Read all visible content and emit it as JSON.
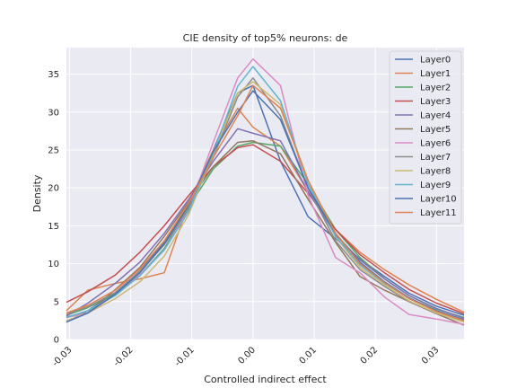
{
  "chart_data": {
    "type": "line",
    "title": "CIE density of top5% neurons: de",
    "xlabel": "Controlled indirect effect",
    "ylabel": "Density",
    "xlim": [
      -0.0305,
      0.0345
    ],
    "ylim": [
      0,
      38.5
    ],
    "xticks": [
      -0.03,
      -0.02,
      -0.01,
      0.0,
      0.01,
      0.02,
      0.03
    ],
    "xtick_labels": [
      "-0.03",
      "-0.02",
      "-0.01",
      "0.00",
      "0.01",
      "0.02",
      "0.03"
    ],
    "yticks": [
      0,
      5,
      10,
      15,
      20,
      25,
      30,
      35
    ],
    "ytick_labels": [
      "0",
      "5",
      "10",
      "15",
      "20",
      "25",
      "30",
      "35"
    ],
    "grid": true,
    "legend_position": "top-right",
    "series": [
      {
        "name": "Layer0",
        "color": "#4c72b0",
        "x": [
          -0.0305,
          -0.027,
          -0.0225,
          -0.0185,
          -0.0145,
          -0.0105,
          -0.0065,
          -0.0025,
          0.0,
          0.0045,
          0.009,
          0.0135,
          0.0175,
          0.0215,
          0.0255,
          0.03,
          0.0345
        ],
        "y": [
          2.3,
          3.8,
          6.2,
          9.0,
          12.8,
          17.5,
          25.0,
          32.5,
          33.5,
          23.5,
          16.2,
          13.3,
          10.6,
          8.3,
          6.1,
          4.4,
          3.2
        ]
      },
      {
        "name": "Layer1",
        "color": "#dd8452",
        "x": [
          -0.0305,
          -0.027,
          -0.0225,
          -0.0185,
          -0.0145,
          -0.0105,
          -0.0065,
          -0.0025,
          0.0,
          0.0045,
          0.009,
          0.0135,
          0.0175,
          0.0215,
          0.0255,
          0.03,
          0.0345
        ],
        "y": [
          3.8,
          6.5,
          7.4,
          8.0,
          8.8,
          18.0,
          25.0,
          30.5,
          28.0,
          25.5,
          19.5,
          14.5,
          11.5,
          9.2,
          7.2,
          5.3,
          3.6
        ]
      },
      {
        "name": "Layer2",
        "color": "#55a868",
        "x": [
          -0.0305,
          -0.027,
          -0.0225,
          -0.0185,
          -0.0145,
          -0.0105,
          -0.0065,
          -0.0025,
          0.0,
          0.0045,
          0.009,
          0.0135,
          0.0175,
          0.0215,
          0.0255,
          0.03,
          0.0345
        ],
        "y": [
          3.2,
          4.2,
          6.0,
          8.5,
          12.0,
          17.5,
          22.5,
          25.5,
          26.0,
          25.5,
          20.5,
          14.5,
          10.8,
          8.0,
          5.8,
          4.0,
          2.9
        ]
      },
      {
        "name": "Layer3",
        "color": "#c44e52",
        "x": [
          -0.0305,
          -0.027,
          -0.0225,
          -0.0185,
          -0.0145,
          -0.0105,
          -0.0065,
          -0.0025,
          0.0,
          0.0045,
          0.009,
          0.0135,
          0.0175,
          0.0215,
          0.0255,
          0.03,
          0.0345
        ],
        "y": [
          4.9,
          6.3,
          8.5,
          11.5,
          15.0,
          19.0,
          22.8,
          25.3,
          25.7,
          23.5,
          19.3,
          14.5,
          11.2,
          8.8,
          6.6,
          4.8,
          3.4
        ]
      },
      {
        "name": "Layer4",
        "color": "#8172b3",
        "x": [
          -0.0305,
          -0.027,
          -0.0225,
          -0.0185,
          -0.0145,
          -0.0105,
          -0.0065,
          -0.0025,
          0.0,
          0.0045,
          0.009,
          0.0135,
          0.0175,
          0.0215,
          0.0255,
          0.03,
          0.0345
        ],
        "y": [
          3.1,
          4.8,
          7.4,
          10.2,
          14.0,
          18.5,
          23.5,
          27.8,
          27.2,
          26.2,
          19.5,
          13.8,
          10.5,
          8.0,
          5.8,
          4.1,
          2.8
        ]
      },
      {
        "name": "Layer5",
        "color": "#937860",
        "x": [
          -0.0305,
          -0.027,
          -0.0225,
          -0.0185,
          -0.0145,
          -0.0105,
          -0.0065,
          -0.0025,
          0.0,
          0.0045,
          0.009,
          0.0135,
          0.0175,
          0.0215,
          0.0255,
          0.03,
          0.0345
        ],
        "y": [
          3.0,
          3.5,
          6.6,
          9.5,
          13.6,
          18.2,
          22.8,
          26.0,
          26.2,
          24.5,
          18.5,
          12.8,
          8.3,
          6.5,
          5.0,
          3.4,
          1.9
        ]
      },
      {
        "name": "Layer6",
        "color": "#da8bc3",
        "x": [
          -0.0305,
          -0.027,
          -0.0225,
          -0.0185,
          -0.0145,
          -0.0105,
          -0.0065,
          -0.0025,
          0.0,
          0.0045,
          0.009,
          0.0135,
          0.0175,
          0.0215,
          0.0255,
          0.03,
          0.0345
        ],
        "y": [
          2.9,
          3.5,
          5.9,
          8.5,
          11.8,
          17.2,
          26.0,
          34.5,
          37.0,
          33.5,
          19.0,
          10.8,
          8.8,
          5.6,
          3.3,
          2.7,
          2.0
        ]
      },
      {
        "name": "Layer7",
        "color": "#8c8c8c",
        "x": [
          -0.0305,
          -0.027,
          -0.0225,
          -0.0185,
          -0.0145,
          -0.0105,
          -0.0065,
          -0.0025,
          0.0,
          0.0045,
          0.009,
          0.0135,
          0.0175,
          0.0215,
          0.0255,
          0.03,
          0.0345
        ],
        "y": [
          3.4,
          4.3,
          6.2,
          9.0,
          12.5,
          17.3,
          24.0,
          32.0,
          34.5,
          29.5,
          20.0,
          13.0,
          9.2,
          7.0,
          5.0,
          3.5,
          2.4
        ]
      },
      {
        "name": "Layer8",
        "color": "#ccb974",
        "x": [
          -0.0305,
          -0.027,
          -0.0225,
          -0.0185,
          -0.0145,
          -0.0105,
          -0.0065,
          -0.0025,
          0.0,
          0.0045,
          0.009,
          0.0135,
          0.0175,
          0.0215,
          0.0255,
          0.03,
          0.0345
        ],
        "y": [
          2.5,
          3.5,
          5.4,
          7.6,
          11.0,
          16.5,
          24.5,
          32.5,
          34.0,
          31.0,
          21.0,
          13.5,
          9.5,
          7.2,
          5.1,
          3.5,
          2.3
        ]
      },
      {
        "name": "Layer9",
        "color": "#64b5cd",
        "x": [
          -0.0305,
          -0.027,
          -0.0225,
          -0.0185,
          -0.0145,
          -0.0105,
          -0.0065,
          -0.0025,
          0.0,
          0.0045,
          0.009,
          0.0135,
          0.0175,
          0.0215,
          0.0255,
          0.03,
          0.0345
        ],
        "y": [
          2.9,
          3.8,
          5.8,
          8.4,
          11.8,
          16.9,
          24.6,
          33.4,
          36.0,
          31.5,
          20.5,
          13.6,
          9.8,
          7.4,
          5.4,
          3.8,
          2.6
        ]
      },
      {
        "name": "Layer10",
        "color": "#4c72b0",
        "x": [
          -0.0305,
          -0.027,
          -0.0225,
          -0.0185,
          -0.0145,
          -0.0105,
          -0.0065,
          -0.0025,
          0.0,
          0.0045,
          0.009,
          0.0135,
          0.0175,
          0.0215,
          0.0255,
          0.03,
          0.0345
        ],
        "y": [
          2.3,
          3.5,
          6.0,
          8.8,
          12.6,
          17.8,
          24.8,
          30.0,
          32.8,
          29.0,
          20.0,
          14.0,
          10.2,
          7.6,
          5.5,
          3.8,
          2.6
        ]
      },
      {
        "name": "Layer11",
        "color": "#dd8452",
        "x": [
          -0.0305,
          -0.027,
          -0.0225,
          -0.0185,
          -0.0145,
          -0.0105,
          -0.0065,
          -0.0025,
          0.0,
          0.0045,
          0.009,
          0.0135,
          0.0175,
          0.0215,
          0.0255,
          0.03,
          0.0345
        ],
        "y": [
          3.5,
          4.5,
          6.5,
          9.3,
          13.0,
          18.0,
          24.0,
          29.5,
          33.5,
          30.5,
          21.0,
          14.0,
          10.0,
          7.5,
          5.4,
          3.7,
          2.5
        ]
      }
    ]
  }
}
